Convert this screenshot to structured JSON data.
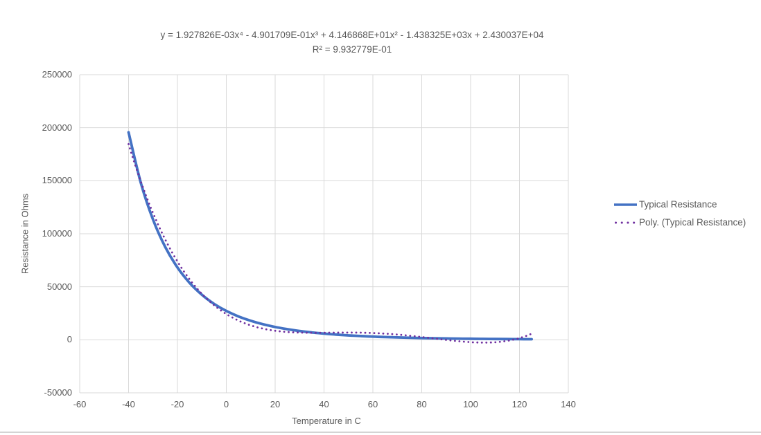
{
  "title": {
    "equation": "y = 1.927826E-03x⁴ - 4.901709E-01x³ + 4.146868E+01x² - 1.438325E+03x + 2.430037E+04",
    "r_squared": "R² = 9.932779E-01"
  },
  "axes": {
    "x_title": "Temperature in C",
    "y_title": "Resistance in Ohms"
  },
  "legend": {
    "position": "right",
    "items": [
      {
        "label": "Typical Resistance",
        "style": "solid",
        "color": "#4472C4"
      },
      {
        "label": "Poly. (Typical Resistance)",
        "style": "dotted",
        "color": "#7030A0"
      }
    ]
  },
  "colors": {
    "series_line": "#4472C4",
    "trendline": "#7030A0",
    "gridline": "#D9D9D9",
    "text": "#595959",
    "bottom_border": "#D4D4D4",
    "background": "#FFFFFF"
  },
  "chart_data": {
    "type": "line",
    "title": "y = 1.927826E-03x⁴ - 4.901709E-01x³ + 4.146868E+01x² - 1.438325E+03x + 2.430037E+04 ; R² = 9.932779E-01",
    "xlabel": "Temperature in C",
    "ylabel": "Resistance in Ohms",
    "xlim": [
      -60,
      140
    ],
    "ylim": [
      -50000,
      250000
    ],
    "x_ticks": [
      -60,
      -40,
      -20,
      0,
      20,
      40,
      60,
      80,
      100,
      120,
      140
    ],
    "y_ticks": [
      250000,
      200000,
      150000,
      100000,
      50000,
      0,
      -50000
    ],
    "grid": true,
    "legend_position": "right",
    "series": [
      {
        "name": "Typical Resistance",
        "color": "#4472C4",
        "style": "solid",
        "x": [
          -40,
          -35,
          -30,
          -25,
          -20,
          -15,
          -10,
          -5,
          0,
          5,
          10,
          15,
          20,
          25,
          30,
          35,
          40,
          45,
          50,
          55,
          60,
          65,
          70,
          75,
          80,
          85,
          90,
          95,
          100,
          105,
          110,
          115,
          120,
          125
        ],
        "y": [
          195652,
          148171,
          113347,
          87559,
          68237,
          53650,
          42506,
          33892,
          27219,
          22021,
          17926,
          14674,
          12081,
          10000,
          8315,
          6948,
          5834,
          4917,
          4161,
          3535,
          3014,
          2586,
          2228,
          1925,
          1669,
          1452,
          1268,
          1110,
          974,
          858,
          758,
          672,
          596,
          531
        ]
      },
      {
        "name": "Poly. (Typical Resistance)",
        "color": "#7030A0",
        "style": "dotted",
        "trendline": {
          "type": "polynomial",
          "order": 4,
          "coefficients": [
            0.001927826,
            -0.4901709,
            41.46868,
            -1438.325,
            24300.37
          ],
          "x_range": [
            -40,
            125
          ],
          "r_squared": 0.9932779
        }
      }
    ]
  }
}
